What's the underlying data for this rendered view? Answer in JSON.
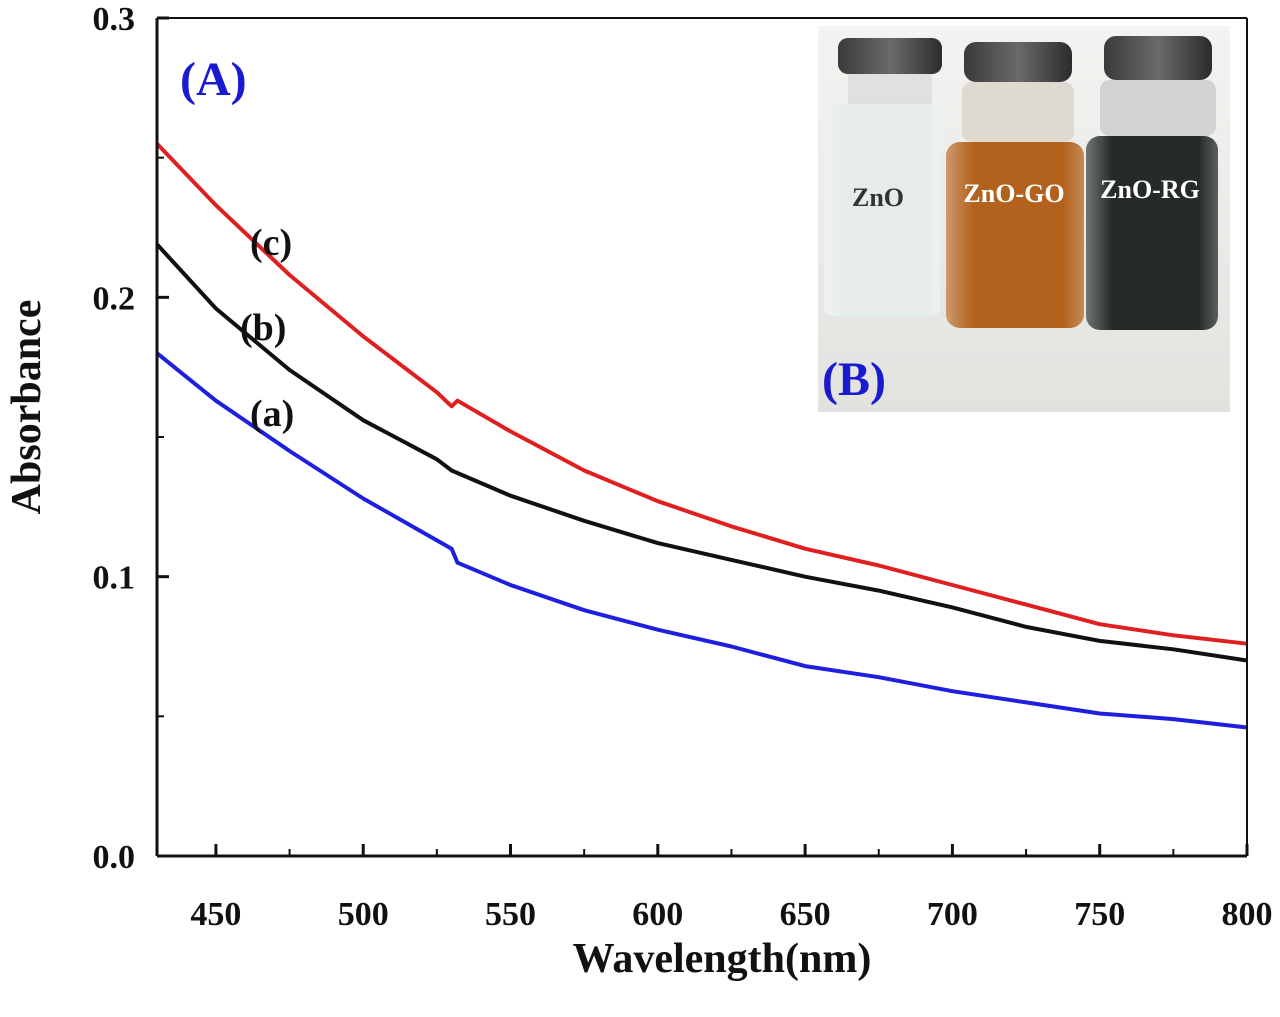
{
  "chart_data": {
    "type": "line",
    "xlabel": "Wavelength(nm)",
    "ylabel": "Absorbance",
    "xlim": [
      430,
      800
    ],
    "ylim": [
      0.0,
      0.3
    ],
    "x_ticks": [
      "450",
      "500",
      "550",
      "600",
      "650",
      "700",
      "750",
      "800"
    ],
    "y_ticks": [
      "0.0",
      "0.1",
      "0.2",
      "0.3"
    ],
    "grid": false,
    "panel_labels": [
      "(A)",
      "(B)"
    ],
    "series": [
      {
        "name": "(a)",
        "color": "#1f1fe0",
        "x": [
          430,
          450,
          475,
          500,
          525,
          530,
          532,
          550,
          575,
          600,
          625,
          650,
          675,
          700,
          725,
          750,
          775,
          800
        ],
        "y": [
          0.18,
          0.163,
          0.145,
          0.128,
          0.113,
          0.11,
          0.105,
          0.097,
          0.088,
          0.081,
          0.075,
          0.068,
          0.064,
          0.059,
          0.055,
          0.051,
          0.049,
          0.046
        ]
      },
      {
        "name": "(b)",
        "color": "#111111",
        "x": [
          430,
          450,
          475,
          500,
          525,
          530,
          550,
          575,
          600,
          625,
          650,
          675,
          700,
          725,
          750,
          775,
          800
        ],
        "y": [
          0.219,
          0.196,
          0.174,
          0.156,
          0.142,
          0.138,
          0.129,
          0.12,
          0.112,
          0.106,
          0.1,
          0.095,
          0.089,
          0.082,
          0.077,
          0.074,
          0.07
        ]
      },
      {
        "name": "(c)",
        "color": "#e02020",
        "x": [
          430,
          450,
          475,
          500,
          525,
          530,
          532,
          550,
          575,
          600,
          625,
          650,
          675,
          700,
          725,
          750,
          775,
          800
        ],
        "y": [
          0.255,
          0.233,
          0.208,
          0.186,
          0.166,
          0.161,
          0.163,
          0.152,
          0.138,
          0.127,
          0.118,
          0.11,
          0.104,
          0.097,
          0.09,
          0.083,
          0.079,
          0.076
        ]
      }
    ],
    "inset": {
      "vial_labels": [
        "ZnO",
        "ZnO-GO",
        "ZnO-RG"
      ],
      "vial_colors": [
        "#e6ecec",
        "#b3621e",
        "#262a2a"
      ]
    }
  }
}
